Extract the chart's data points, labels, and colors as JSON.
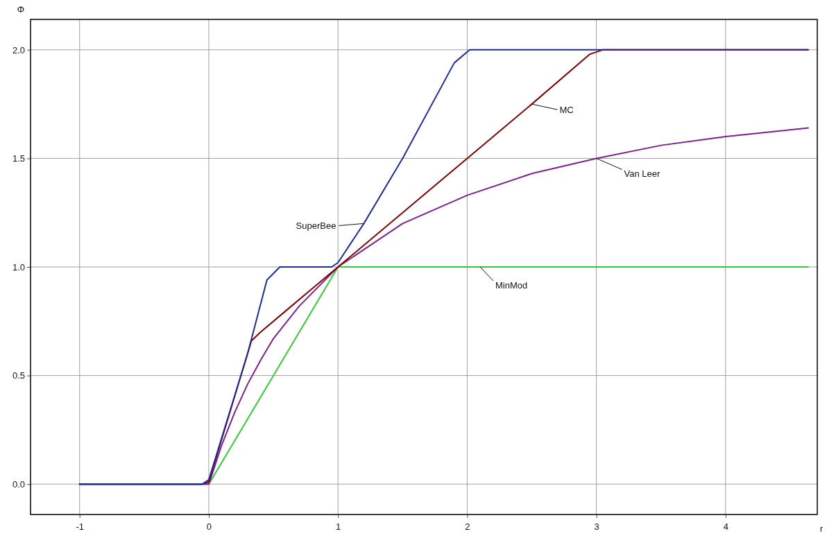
{
  "chart_data": {
    "type": "line",
    "xlabel": "r",
    "ylabel": "Φ",
    "xlim": [
      -1.38,
      4.71
    ],
    "ylim": [
      -0.14,
      2.14
    ],
    "xticks": [
      -1,
      0,
      1,
      2,
      3,
      4
    ],
    "yticks": [
      {
        "value": 0,
        "label": "0.0"
      },
      {
        "value": 0.5,
        "label": "0.5"
      },
      {
        "value": 1,
        "label": "1.0"
      },
      {
        "value": 1.5,
        "label": "1.5"
      },
      {
        "value": 2,
        "label": "2.0"
      }
    ],
    "grid": true,
    "line_style": "solid",
    "series": [
      {
        "name": "MinMod",
        "color": "#33cc33",
        "x": [
          -1,
          0,
          1,
          2.1,
          4.64
        ],
        "values": [
          0,
          0,
          1,
          1,
          1
        ]
      },
      {
        "name": "Van Leer",
        "color": "#7f1f8f",
        "x": [
          -1,
          -0.05,
          0,
          0.1,
          0.2,
          0.3,
          0.4,
          0.5,
          0.7,
          1,
          1.5,
          2,
          2.5,
          3,
          3.5,
          4,
          4.64
        ],
        "values": [
          0,
          0,
          0,
          0.18,
          0.33,
          0.46,
          0.57,
          0.67,
          0.82,
          1,
          1.2,
          1.33,
          1.43,
          1.5,
          1.56,
          1.6,
          1.64
        ]
      },
      {
        "name": "MC",
        "color": "#800000",
        "x": [
          -1,
          -0.05,
          0,
          0.33,
          0.4,
          0.6,
          0.8,
          1,
          1.5,
          2,
          2.5,
          2.95,
          3.05,
          4.64
        ],
        "values": [
          0,
          0,
          0.01,
          0.66,
          0.7,
          0.8,
          0.9,
          1,
          1.25,
          1.5,
          1.75,
          1.98,
          2,
          2
        ]
      },
      {
        "name": "SuperBee",
        "color": "#1f2a9f",
        "x": [
          -1,
          -0.05,
          0,
          0.3,
          0.45,
          0.55,
          0.95,
          1,
          1.2,
          1.5,
          1.9,
          2.02,
          4.64
        ],
        "values": [
          0,
          0,
          0.02,
          0.6,
          0.94,
          1,
          1,
          1.02,
          1.2,
          1.5,
          1.94,
          2,
          2
        ]
      }
    ]
  }
}
